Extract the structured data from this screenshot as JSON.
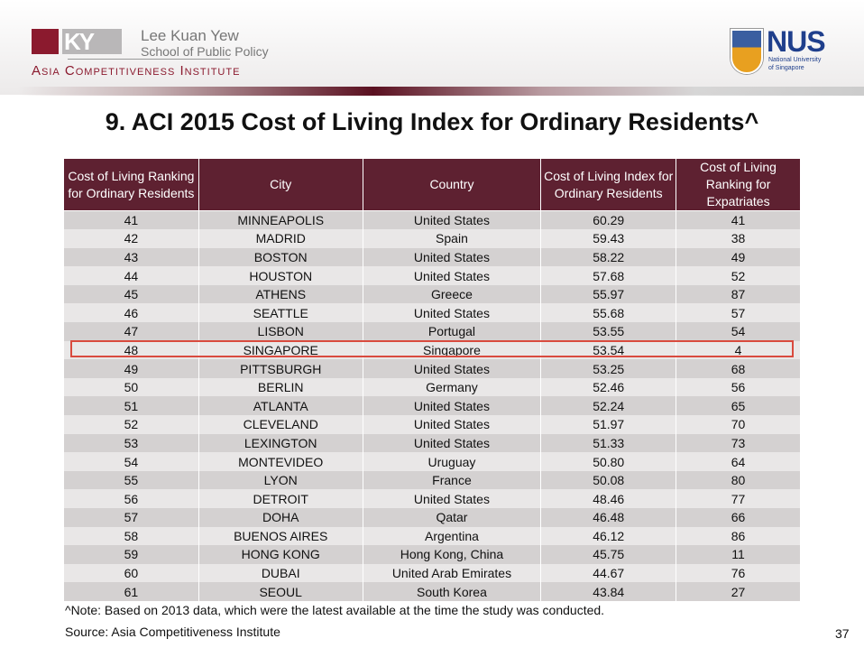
{
  "header": {
    "lky_mark": "KY",
    "lky_name_1": "Lee Kuan Yew",
    "lky_name_2": "School of Public Policy",
    "aci": "Asia Competitiveness Institute",
    "nus": "NUS",
    "nus_sub_1": "National University",
    "nus_sub_2": "of Singapore"
  },
  "title": "9. ACI 2015 Cost of Living Index for Ordinary Residents^",
  "table": {
    "columns": [
      "Cost of Living Ranking for Ordinary Residents",
      "City",
      "Country",
      "Cost of Living Index for Ordinary Residents",
      "Cost of Living Ranking for Expatriates"
    ],
    "highlight_rank": "48",
    "rows": [
      [
        "41",
        "MINNEAPOLIS",
        "United States",
        "60.29",
        "41"
      ],
      [
        "42",
        "MADRID",
        "Spain",
        "59.43",
        "38"
      ],
      [
        "43",
        "BOSTON",
        "United States",
        "58.22",
        "49"
      ],
      [
        "44",
        "HOUSTON",
        "United States",
        "57.68",
        "52"
      ],
      [
        "45",
        "ATHENS",
        "Greece",
        "55.97",
        "87"
      ],
      [
        "46",
        "SEATTLE",
        "United States",
        "55.68",
        "57"
      ],
      [
        "47",
        "LISBON",
        "Portugal",
        "53.55",
        "54"
      ],
      [
        "48",
        "SINGAPORE",
        "Singapore",
        "53.54",
        "4"
      ],
      [
        "49",
        "PITTSBURGH",
        "United States",
        "53.25",
        "68"
      ],
      [
        "50",
        "BERLIN",
        "Germany",
        "52.46",
        "56"
      ],
      [
        "51",
        "ATLANTA",
        "United States",
        "52.24",
        "65"
      ],
      [
        "52",
        "CLEVELAND",
        "United States",
        "51.97",
        "70"
      ],
      [
        "53",
        "LEXINGTON",
        "United States",
        "51.33",
        "73"
      ],
      [
        "54",
        "MONTEVIDEO",
        "Uruguay",
        "50.80",
        "64"
      ],
      [
        "55",
        "LYON",
        "France",
        "50.08",
        "80"
      ],
      [
        "56",
        "DETROIT",
        "United States",
        "48.46",
        "77"
      ],
      [
        "57",
        "DOHA",
        "Qatar",
        "46.48",
        "66"
      ],
      [
        "58",
        "BUENOS AIRES",
        "Argentina",
        "46.12",
        "86"
      ],
      [
        "59",
        "HONG KONG",
        "Hong Kong, China",
        "45.75",
        "11"
      ],
      [
        "60",
        "DUBAI",
        "United Arab Emirates",
        "44.67",
        "76"
      ],
      [
        "61",
        "SEOUL",
        "South Korea",
        "43.84",
        "27"
      ]
    ]
  },
  "note": "^Note: Based on 2013 data, which were the latest available at the time the study was conducted.",
  "source": "Source: Asia Competitiveness Institute",
  "page_number": "37"
}
